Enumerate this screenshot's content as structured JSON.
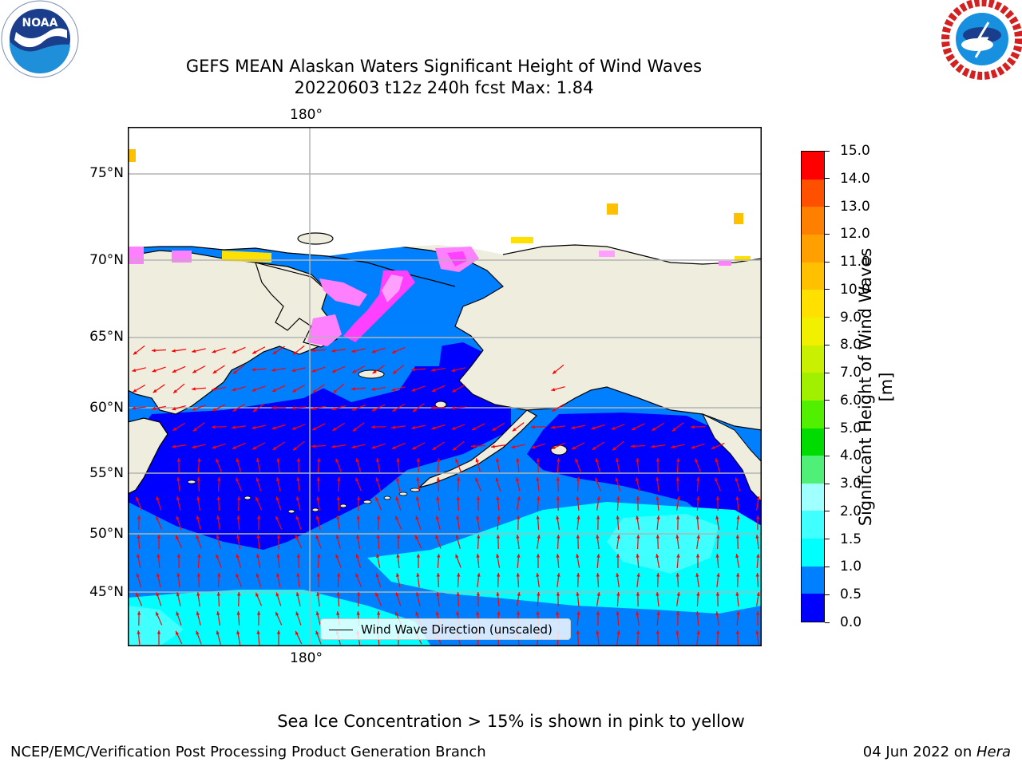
{
  "title": {
    "line1": "GEFS MEAN Alaskan Waters Significant Height of Wind Waves",
    "line2": "20220603 t12z 240h fcst   Max: 1.84"
  },
  "map": {
    "lon_label_top": "180°",
    "lon_label_bottom": "180°",
    "lat_labels": [
      "75°N",
      "70°N",
      "65°N",
      "60°N",
      "55°N",
      "50°N",
      "45°N"
    ],
    "land_color": "#efedde",
    "vector_color": "#ff0000"
  },
  "legend": {
    "label": "Wind Wave Direction (unscaled)"
  },
  "colorbar": {
    "label": "Significant Height of Wind Waves [m]",
    "ticks": [
      "0.0",
      "0.5",
      "1.0",
      "1.5",
      "2.0",
      "3.0",
      "4.0",
      "5.0",
      "6.0",
      "7.0",
      "8.0",
      "9.0",
      "10.0",
      "11.0",
      "12.0",
      "13.0",
      "14.0",
      "15.0"
    ],
    "colors": [
      "#0000ff",
      "#0080ff",
      "#00ffff",
      "#40ffff",
      "#a0ffff",
      "#50f078",
      "#00dc00",
      "#50f000",
      "#a0f000",
      "#c8f000",
      "#f0f000",
      "#ffe000",
      "#ffc000",
      "#ffa000",
      "#ff8000",
      "#ff5000",
      "#ff0000"
    ]
  },
  "sea_ice_note": "Sea Ice Concentration > 15% is shown in pink to yellow",
  "footer": {
    "left": "NCEP/EMC/Verification Post Processing Product Generation Branch",
    "right_date": "04 Jun 2022 on ",
    "right_host": "Hera"
  },
  "logos": {
    "left": "noaa-logo",
    "right": "nws-logo"
  }
}
